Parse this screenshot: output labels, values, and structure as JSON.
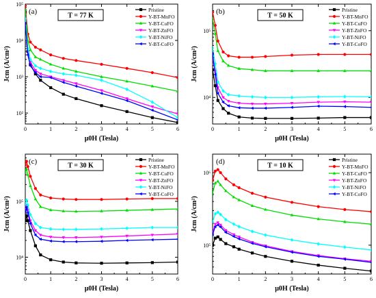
{
  "figure": {
    "panels": [
      "a",
      "b",
      "c",
      "d"
    ]
  },
  "chart_data": [
    {
      "type": "line",
      "panel_label": "(a)",
      "temperature_label": "T = 77 K",
      "xlabel": "μ0H (Tesla)",
      "ylabel": "Jcm (A/cm²)",
      "y_scale": "log",
      "xlim": [
        0,
        6
      ],
      "ylim": [
        50,
        100000
      ],
      "xticks": [
        0,
        1,
        2,
        3,
        4,
        5,
        6
      ],
      "yticks": [
        100,
        1000,
        10000,
        100000
      ],
      "ytick_labels": [
        "10²",
        "10³",
        "10⁴",
        "10⁵"
      ],
      "legend_position": "top-right",
      "series": [
        {
          "name": "Pristine",
          "color": "#000000",
          "marker": "square",
          "x": [
            0,
            0.1,
            0.2,
            0.4,
            0.6,
            1,
            1.5,
            2,
            3,
            4,
            5,
            6
          ],
          "y": [
            60000,
            5000,
            2200,
            1200,
            800,
            500,
            330,
            250,
            160,
            110,
            75,
            55
          ]
        },
        {
          "name": "Y-BT-MnFO",
          "color": "#ff0000",
          "marker": "circle",
          "x": [
            0,
            0.1,
            0.2,
            0.4,
            0.6,
            1,
            1.5,
            2,
            3,
            4,
            5,
            6
          ],
          "y": [
            90000,
            15000,
            9000,
            6500,
            5500,
            4000,
            3200,
            2800,
            2200,
            1700,
            1300,
            950
          ]
        },
        {
          "name": "Y-BT-CuFO",
          "color": "#00dd00",
          "marker": "triangle-up",
          "x": [
            0,
            0.1,
            0.2,
            0.4,
            0.6,
            1,
            1.5,
            2,
            3,
            4,
            5,
            6
          ],
          "y": [
            70000,
            10000,
            5500,
            3500,
            3000,
            2200,
            1700,
            1400,
            1000,
            750,
            550,
            400
          ]
        },
        {
          "name": "Y-BT-ZnFO",
          "color": "#ff00ff",
          "marker": "triangle-down",
          "x": [
            0,
            0.1,
            0.2,
            0.4,
            0.6,
            1,
            1.5,
            2,
            3,
            4,
            5,
            6
          ],
          "y": [
            35000,
            5000,
            2500,
            1500,
            1200,
            1000,
            800,
            650,
            420,
            250,
            150,
            95
          ]
        },
        {
          "name": "Y-BT-NiFO",
          "color": "#00ffff",
          "marker": "diamond",
          "x": [
            0,
            0.1,
            0.2,
            0.4,
            0.6,
            1,
            1.5,
            2,
            3,
            4,
            5,
            6
          ],
          "y": [
            40000,
            6000,
            3000,
            2000,
            1700,
            1400,
            1200,
            1100,
            800,
            450,
            200,
            75
          ]
        },
        {
          "name": "Y-BT-CoFO",
          "color": "#0000ff",
          "marker": "triangle-left",
          "x": [
            0,
            0.1,
            0.2,
            0.4,
            0.6,
            1,
            1.5,
            2,
            3,
            4,
            5,
            6
          ],
          "y": [
            30000,
            4000,
            2000,
            1300,
            1000,
            950,
            700,
            550,
            350,
            220,
            120,
            65
          ]
        }
      ]
    },
    {
      "type": "line",
      "panel_label": "(b)",
      "temperature_label": "T = 50 K",
      "xlabel": "μ0H (Tesla)",
      "ylabel": "Jcm (A/cm²)",
      "y_scale": "log",
      "xlim": [
        0,
        6
      ],
      "ylim": [
        4000,
        250000
      ],
      "xticks": [
        0,
        1,
        2,
        3,
        4,
        5,
        6
      ],
      "yticks": [
        10000,
        100000
      ],
      "ytick_labels": [
        "10⁴",
        "10⁵"
      ],
      "legend_position": "top-right",
      "series": [
        {
          "name": "Pristine",
          "color": "#000000",
          "marker": "square",
          "x": [
            0,
            0.1,
            0.2,
            0.4,
            0.6,
            1,
            1.5,
            2,
            3,
            4,
            5,
            6
          ],
          "y": [
            26000,
            15000,
            9000,
            6800,
            5800,
            5100,
            4900,
            4850,
            4850,
            4900,
            5000,
            5000
          ]
        },
        {
          "name": "Y-BT-MnFO",
          "color": "#ff0000",
          "marker": "circle",
          "x": [
            0,
            0.1,
            0.2,
            0.4,
            0.6,
            1,
            1.5,
            2,
            3,
            4,
            5,
            6
          ],
          "y": [
            190000,
            120000,
            70000,
            48000,
            42000,
            40000,
            40000,
            41000,
            43000,
            44000,
            44000,
            44000
          ]
        },
        {
          "name": "Y-BT-CuFO",
          "color": "#00dd00",
          "marker": "triangle-up",
          "x": [
            0,
            0.1,
            0.2,
            0.4,
            0.6,
            1,
            1.5,
            2,
            3,
            4,
            5,
            6
          ],
          "y": [
            150000,
            90000,
            50000,
            35000,
            30000,
            27000,
            26000,
            25000,
            25000,
            25000,
            25000,
            25000
          ]
        },
        {
          "name": "Y-BT-ZnFO",
          "color": "#ff00ff",
          "marker": "triangle-down",
          "x": [
            0,
            0.1,
            0.2,
            0.4,
            0.6,
            1,
            1.5,
            2,
            3,
            4,
            5,
            6
          ],
          "y": [
            38000,
            25000,
            14000,
            10000,
            8800,
            8200,
            8000,
            8000,
            8200,
            8500,
            8600,
            8500
          ]
        },
        {
          "name": "Y-BT-NiFO",
          "color": "#00ffff",
          "marker": "diamond",
          "x": [
            0,
            0.1,
            0.2,
            0.4,
            0.6,
            1,
            1.5,
            2,
            3,
            4,
            5,
            6
          ],
          "y": [
            55000,
            32000,
            17000,
            12500,
            11000,
            10500,
            10200,
            10000,
            10000,
            10200,
            10300,
            10200
          ]
        },
        {
          "name": "Y-BT-CoFO",
          "color": "#0000ff",
          "marker": "triangle-left",
          "x": [
            0,
            0.1,
            0.2,
            0.4,
            0.6,
            1,
            1.5,
            2,
            3,
            4,
            5,
            6
          ],
          "y": [
            45000,
            22000,
            11500,
            8500,
            7500,
            7000,
            6900,
            6900,
            7100,
            7400,
            7300,
            7100
          ]
        }
      ]
    },
    {
      "type": "line",
      "panel_label": "(c)",
      "temperature_label": "T = 30 K",
      "xlabel": "μ0H (Tesla)",
      "ylabel": "Jcm (A/cm²)",
      "y_scale": "log",
      "xlim": [
        0,
        6
      ],
      "ylim": [
        5000,
        700000
      ],
      "xticks": [
        0,
        1,
        2,
        3,
        4,
        5,
        6
      ],
      "yticks": [
        10000,
        100000
      ],
      "ytick_labels": [
        "10⁴",
        "10⁵"
      ],
      "legend_position": "top-right",
      "series": [
        {
          "name": "Pristine",
          "color": "#000000",
          "marker": "square",
          "x": [
            0,
            0.05,
            0.1,
            0.2,
            0.4,
            0.6,
            1,
            1.5,
            2,
            3,
            4,
            5,
            6
          ],
          "y": [
            45000,
            55000,
            45000,
            30000,
            16000,
            11000,
            9000,
            8200,
            7900,
            7800,
            7900,
            8000,
            8200
          ]
        },
        {
          "name": "Y-BT-MnFO",
          "color": "#ff0000",
          "marker": "circle",
          "x": [
            0,
            0.05,
            0.1,
            0.2,
            0.4,
            0.6,
            1,
            1.5,
            2,
            3,
            4,
            5,
            6
          ],
          "y": [
            450000,
            520000,
            420000,
            280000,
            170000,
            130000,
            115000,
            110000,
            108000,
            108000,
            110000,
            112000,
            112000
          ]
        },
        {
          "name": "Y-BT-CuFO",
          "color": "#00dd00",
          "marker": "triangle-up",
          "x": [
            0,
            0.05,
            0.1,
            0.2,
            0.4,
            0.6,
            1,
            1.5,
            2,
            3,
            4,
            5,
            6
          ],
          "y": [
            330000,
            380000,
            300000,
            190000,
            110000,
            80000,
            70000,
            67000,
            66000,
            67000,
            69000,
            71000,
            73000
          ]
        },
        {
          "name": "Y-BT-ZnFO",
          "color": "#ff00ff",
          "marker": "triangle-down",
          "x": [
            0,
            0.05,
            0.1,
            0.2,
            0.4,
            0.6,
            1,
            1.5,
            2,
            3,
            4,
            5,
            6
          ],
          "y": [
            70000,
            85000,
            70000,
            45000,
            30000,
            25000,
            23000,
            22500,
            22500,
            23000,
            24000,
            25000,
            26000
          ]
        },
        {
          "name": "Y-BT-NiFO",
          "color": "#00ffff",
          "marker": "diamond",
          "x": [
            0,
            0.05,
            0.1,
            0.2,
            0.4,
            0.6,
            1,
            1.5,
            2,
            3,
            4,
            5,
            6
          ],
          "y": [
            90000,
            105000,
            85000,
            58000,
            40000,
            34000,
            32000,
            31500,
            31500,
            32000,
            33000,
            34000,
            34000
          ]
        },
        {
          "name": "Y-BT-CoFO",
          "color": "#0000ff",
          "marker": "triangle-left",
          "x": [
            0,
            0.05,
            0.1,
            0.2,
            0.4,
            0.6,
            1,
            1.5,
            2,
            3,
            4,
            5,
            6
          ],
          "y": [
            65000,
            78000,
            62000,
            40000,
            25000,
            21000,
            19500,
            19000,
            19000,
            19300,
            20000,
            20500,
            21000
          ]
        }
      ]
    },
    {
      "type": "line",
      "panel_label": "(d)",
      "temperature_label": "T = 10 K",
      "xlabel": "μ0H (Tesla)",
      "ylabel": "Jcm (A/cm²)",
      "y_scale": "log",
      "xlim": [
        0,
        6
      ],
      "ylim": [
        40000,
        1800000
      ],
      "xticks": [
        0,
        1,
        2,
        3,
        4,
        5,
        6
      ],
      "yticks": [
        100000,
        1000000
      ],
      "ytick_labels": [
        "10⁵",
        "10⁶"
      ],
      "legend_position": "top-right",
      "series": [
        {
          "name": "Pristine",
          "color": "#000000",
          "marker": "square",
          "x": [
            0,
            0.1,
            0.2,
            0.3,
            0.5,
            0.8,
            1,
            1.5,
            2,
            3,
            4,
            5,
            6
          ],
          "y": [
            100000,
            125000,
            130000,
            120000,
            105000,
            95000,
            88000,
            78000,
            70000,
            60000,
            53000,
            48000,
            44000
          ]
        },
        {
          "name": "Y-BT-MnFO",
          "color": "#ff0000",
          "marker": "circle",
          "x": [
            0,
            0.1,
            0.2,
            0.3,
            0.5,
            0.8,
            1,
            1.5,
            2,
            3,
            4,
            5,
            6
          ],
          "y": [
            780000,
            1050000,
            1100000,
            1000000,
            820000,
            680000,
            620000,
            520000,
            460000,
            390000,
            340000,
            310000,
            290000
          ]
        },
        {
          "name": "Y-BT-CuFO",
          "color": "#00dd00",
          "marker": "triangle-up",
          "x": [
            0,
            0.1,
            0.2,
            0.3,
            0.5,
            0.8,
            1,
            1.5,
            2,
            3,
            4,
            5,
            6
          ],
          "y": [
            520000,
            720000,
            760000,
            680000,
            560000,
            460000,
            420000,
            350000,
            310000,
            260000,
            230000,
            210000,
            195000
          ]
        },
        {
          "name": "Y-BT-ZnFO",
          "color": "#ff00ff",
          "marker": "triangle-down",
          "x": [
            0,
            0.1,
            0.2,
            0.3,
            0.5,
            0.8,
            1,
            1.5,
            2,
            3,
            4,
            5,
            6
          ],
          "y": [
            150000,
            195000,
            205000,
            190000,
            160000,
            140000,
            130000,
            110000,
            98000,
            82000,
            72000,
            65000,
            60000
          ]
        },
        {
          "name": "Y-BT-NiFO",
          "color": "#00ffff",
          "marker": "diamond",
          "x": [
            0,
            0.1,
            0.2,
            0.3,
            0.5,
            0.8,
            1,
            1.5,
            2,
            3,
            4,
            5,
            6
          ],
          "y": [
            210000,
            270000,
            285000,
            265000,
            225000,
            195000,
            180000,
            155000,
            138000,
            118000,
            104000,
            94000,
            86000
          ]
        },
        {
          "name": "Y-BT-CoFO",
          "color": "#0000ff",
          "marker": "triangle-left",
          "x": [
            0,
            0.1,
            0.2,
            0.3,
            0.5,
            0.8,
            1,
            1.5,
            2,
            3,
            4,
            5,
            6
          ],
          "y": [
            140000,
            180000,
            190000,
            178000,
            150000,
            132000,
            122000,
            106000,
            95000,
            80000,
            70000,
            64000,
            58000
          ]
        }
      ]
    }
  ]
}
